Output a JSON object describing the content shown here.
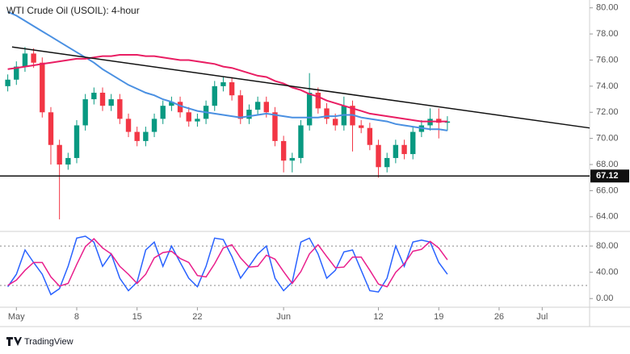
{
  "chart_data": {
    "type": "candlestick",
    "title": "WTI Crude Oil (USOIL): 4-hour",
    "x": [
      -1,
      0,
      1,
      2,
      3,
      4,
      5,
      6,
      7,
      8,
      9,
      10,
      11,
      12,
      13,
      14,
      15,
      16,
      17,
      18,
      19,
      20,
      21,
      22,
      23,
      24,
      25,
      26,
      27,
      28,
      29,
      30,
      31,
      32,
      33,
      34,
      35,
      36,
      37,
      38,
      39,
      40,
      41,
      42,
      43,
      44,
      45,
      46,
      47,
      48,
      49,
      50
    ],
    "ohlc": [
      [
        74.0,
        74.9,
        73.6,
        74.5
      ],
      [
        74.5,
        75.9,
        74.1,
        75.5
      ],
      [
        75.5,
        77.0,
        75.1,
        76.5
      ],
      [
        76.5,
        76.9,
        75.4,
        75.8
      ],
      [
        75.8,
        76.2,
        71.6,
        72.0
      ],
      [
        72.0,
        72.4,
        68.0,
        69.5
      ],
      [
        69.5,
        69.9,
        63.8,
        68.0
      ],
      [
        68.0,
        68.9,
        67.6,
        68.5
      ],
      [
        68.5,
        71.4,
        68.1,
        71.0
      ],
      [
        71.0,
        73.4,
        70.6,
        73.0
      ],
      [
        73.0,
        73.9,
        72.6,
        73.5
      ],
      [
        73.5,
        73.9,
        72.1,
        72.5
      ],
      [
        72.5,
        73.4,
        72.1,
        73.0
      ],
      [
        73.0,
        73.4,
        71.1,
        71.5
      ],
      [
        71.5,
        71.9,
        70.1,
        70.5
      ],
      [
        70.5,
        70.9,
        69.4,
        69.8
      ],
      [
        69.8,
        70.9,
        69.4,
        70.5
      ],
      [
        70.5,
        71.9,
        70.1,
        71.5
      ],
      [
        71.5,
        72.9,
        71.1,
        72.5
      ],
      [
        72.5,
        73.2,
        72.1,
        72.8
      ],
      [
        72.8,
        73.2,
        71.6,
        72.0
      ],
      [
        72.0,
        72.4,
        70.9,
        71.3
      ],
      [
        71.3,
        71.9,
        70.9,
        71.5
      ],
      [
        71.5,
        72.9,
        71.1,
        72.5
      ],
      [
        72.5,
        74.4,
        72.1,
        74.0
      ],
      [
        74.0,
        74.7,
        73.6,
        74.3
      ],
      [
        74.3,
        74.7,
        72.9,
        73.3
      ],
      [
        73.3,
        73.7,
        71.1,
        71.5
      ],
      [
        71.5,
        72.6,
        71.1,
        72.2
      ],
      [
        72.2,
        73.2,
        71.8,
        72.8
      ],
      [
        72.8,
        73.2,
        71.6,
        72.0
      ],
      [
        72.0,
        72.4,
        69.4,
        69.8
      ],
      [
        69.8,
        70.2,
        67.4,
        68.3
      ],
      [
        68.3,
        68.9,
        67.4,
        68.5
      ],
      [
        68.5,
        71.4,
        68.1,
        71.0
      ],
      [
        71.0,
        75.0,
        70.6,
        73.5
      ],
      [
        73.5,
        73.9,
        71.9,
        72.3
      ],
      [
        72.3,
        72.7,
        71.1,
        71.5
      ],
      [
        71.5,
        71.9,
        70.6,
        71.0
      ],
      [
        71.0,
        73.2,
        70.6,
        72.5
      ],
      [
        72.5,
        72.9,
        69.0,
        71.0
      ],
      [
        71.0,
        71.4,
        70.4,
        70.8
      ],
      [
        70.8,
        71.2,
        69.1,
        69.5
      ],
      [
        69.5,
        69.9,
        67.0,
        67.8
      ],
      [
        67.8,
        68.9,
        67.4,
        68.5
      ],
      [
        68.5,
        69.9,
        68.1,
        69.5
      ],
      [
        69.5,
        69.9,
        68.4,
        68.8
      ],
      [
        68.8,
        70.9,
        68.4,
        70.5
      ],
      [
        70.5,
        71.4,
        70.1,
        71.0
      ],
      [
        71.0,
        72.3,
        70.6,
        71.5
      ],
      [
        71.5,
        72.3,
        70.0,
        71.2
      ],
      [
        71.2,
        71.7,
        70.6,
        71.3
      ]
    ],
    "up_color": "#089981",
    "down_color": "#f23645",
    "series": [
      {
        "color": "#4a90e2",
        "values": [
          79.7,
          79.4,
          79.0,
          78.6,
          78.2,
          77.8,
          77.4,
          77.0,
          76.6,
          76.2,
          75.8,
          75.3,
          74.9,
          74.5,
          74.1,
          73.8,
          73.5,
          73.3,
          73.0,
          72.8,
          72.5,
          72.3,
          72.1,
          72.0,
          71.9,
          71.8,
          71.7,
          71.6,
          71.7,
          71.8,
          71.9,
          71.8,
          71.7,
          71.6,
          71.6,
          71.6,
          71.6,
          71.7,
          71.7,
          71.8,
          71.8,
          71.6,
          71.5,
          71.4,
          71.3,
          71.1,
          71.0,
          70.9,
          70.8,
          70.7,
          70.7,
          70.6
        ]
      },
      {
        "color": "#e91e63",
        "values": [
          75.3,
          75.4,
          75.5,
          75.6,
          75.7,
          75.8,
          75.9,
          76.0,
          76.1,
          76.1,
          76.2,
          76.3,
          76.3,
          76.4,
          76.4,
          76.4,
          76.3,
          76.3,
          76.2,
          76.1,
          76.0,
          76.0,
          75.9,
          75.8,
          75.7,
          75.5,
          75.4,
          75.2,
          75.0,
          74.8,
          74.7,
          74.4,
          74.2,
          73.9,
          73.7,
          73.4,
          73.2,
          72.9,
          72.7,
          72.5,
          72.3,
          72.1,
          71.9,
          71.8,
          71.7,
          71.6,
          71.5,
          71.4,
          71.3,
          71.3,
          71.3,
          71.3
        ]
      }
    ],
    "xlim": [
      -1.9,
      66.5
    ],
    "xticks": [
      {
        "value": 0,
        "label": "May"
      },
      {
        "value": 7,
        "label": "8"
      },
      {
        "value": 14,
        "label": "15"
      },
      {
        "value": 21,
        "label": "22"
      },
      {
        "value": 31,
        "label": "Jun"
      },
      {
        "value": 42,
        "label": "12"
      },
      {
        "value": 49,
        "label": "19"
      },
      {
        "value": 56,
        "label": "26"
      },
      {
        "value": 61,
        "label": "Jul"
      }
    ],
    "ylim": [
      63.0,
      80.6
    ],
    "yticks": [
      {
        "value": 64,
        "label": "64.00"
      },
      {
        "value": 66,
        "label": "66.00"
      },
      {
        "value": 68,
        "label": "68.00"
      },
      {
        "value": 70,
        "label": "70.00"
      },
      {
        "value": 72,
        "label": "72.00"
      },
      {
        "value": 74,
        "label": "74.00"
      },
      {
        "value": 76,
        "label": "76.00"
      },
      {
        "value": 78,
        "label": "78.00"
      },
      {
        "value": 80,
        "label": "80.00"
      }
    ],
    "trendline": {
      "x": [
        -0.5,
        66.5
      ],
      "y": [
        77.0,
        70.8
      ],
      "color": "#111111"
    },
    "support": {
      "value": 67.12,
      "label": "67.12",
      "color": "#111111"
    },
    "oscillator": {
      "type": "line",
      "ylim": [
        -12,
        101
      ],
      "yticks": [
        {
          "value": 0,
          "label": "0.00"
        },
        {
          "value": 40,
          "label": "40.00"
        },
        {
          "value": 80,
          "label": "80.00"
        }
      ],
      "levels": [
        20,
        80
      ],
      "series": [
        {
          "color": "#2962ff",
          "values": [
            18,
            37,
            74,
            55,
            37,
            6,
            15,
            49,
            92,
            95,
            86,
            49,
            68,
            31,
            12,
            25,
            74,
            86,
            49,
            80,
            55,
            31,
            18,
            49,
            92,
            90,
            64,
            31,
            49,
            68,
            80,
            31,
            12,
            25,
            86,
            92,
            68,
            31,
            43,
            71,
            74,
            43,
            12,
            10,
            31,
            80,
            49,
            86,
            89,
            86,
            55,
            37
          ]
        },
        {
          "color": "#e91e8c",
          "values": [
            20,
            28,
            43,
            55,
            55,
            33,
            19,
            23,
            52,
            79,
            91,
            77,
            68,
            49,
            37,
            23,
            37,
            62,
            70,
            72,
            61,
            55,
            35,
            33,
            53,
            77,
            82,
            62,
            48,
            49,
            66,
            60,
            41,
            23,
            41,
            68,
            82,
            64,
            47,
            48,
            63,
            63,
            43,
            22,
            18,
            40,
            53,
            72,
            75,
            87,
            77,
            59
          ]
        }
      ]
    }
  },
  "footer": "TradingView"
}
